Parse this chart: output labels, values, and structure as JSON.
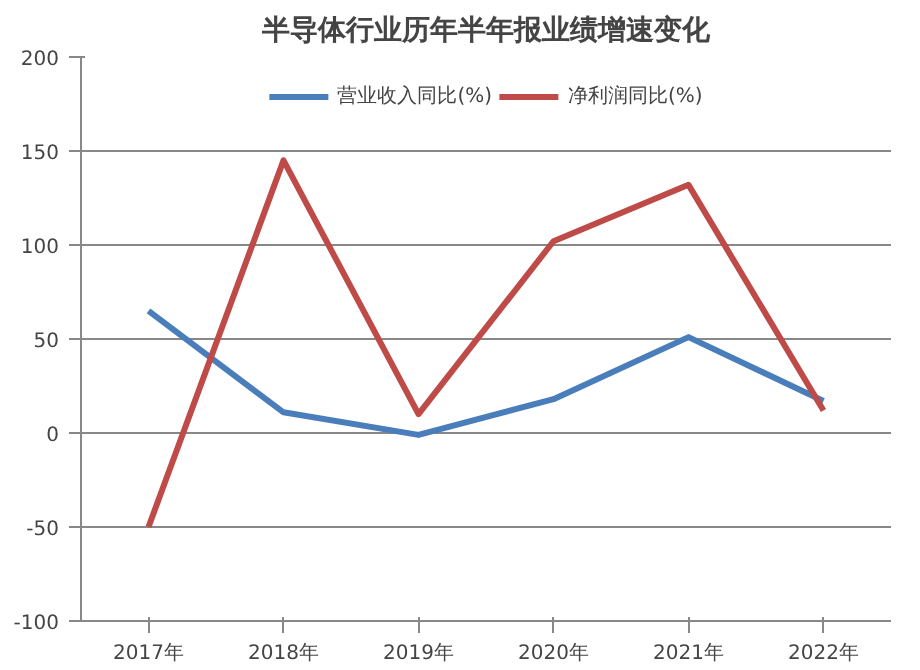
{
  "chart_data": {
    "type": "line",
    "title": "半导体行业历年半年报业绩增速变化",
    "categories": [
      "2017年",
      "2018年",
      "2019年",
      "2020年",
      "2021年",
      "2022年"
    ],
    "series": [
      {
        "name": "营业收入同比(%)",
        "color": "#4a7ebb",
        "values": [
          65,
          11,
          -1,
          18,
          51,
          17
        ]
      },
      {
        "name": "净利润同比(%)",
        "color": "#be4b48",
        "values": [
          -50,
          145,
          10,
          102,
          132,
          12
        ]
      }
    ],
    "ylim": [
      -100,
      200
    ],
    "yticks": [
      -100,
      -50,
      0,
      50,
      100,
      150,
      200
    ],
    "grid": "y",
    "legend": "top",
    "marker": "none",
    "line_style": "solid"
  }
}
